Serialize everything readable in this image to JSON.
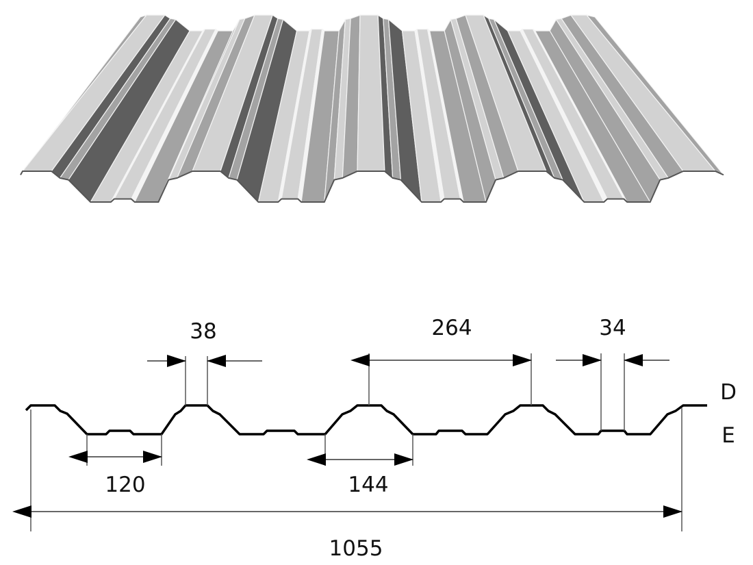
{
  "sheet_rendering": {
    "colors": {
      "light": "#d2d2d2",
      "mid": "#a3a3a3",
      "dark": "#5e5e5e",
      "edge": "#f4f4f4"
    }
  },
  "dimensions": {
    "rib_top_width": "38",
    "pitch": "264",
    "stiffener_width": "34",
    "trough_width": "120",
    "crest_base_width": "144",
    "overall_width": "1055"
  },
  "labels": {
    "top_side": "D",
    "bottom_side": "E"
  }
}
